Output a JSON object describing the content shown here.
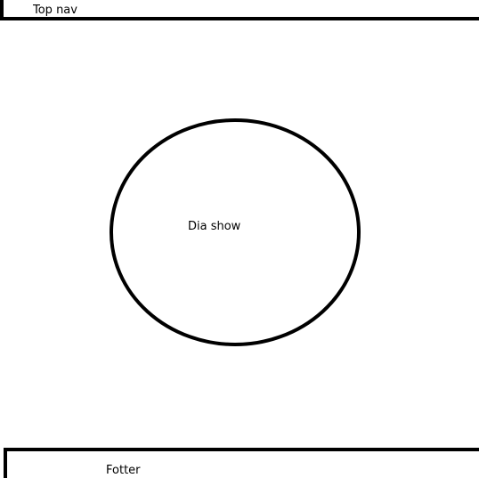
{
  "top_nav": {
    "label": "Top nav"
  },
  "slideshow": {
    "label": "Dia show"
  },
  "footer": {
    "label": "Fotter"
  },
  "colors": {
    "stroke": "#000000",
    "background": "#ffffff"
  }
}
